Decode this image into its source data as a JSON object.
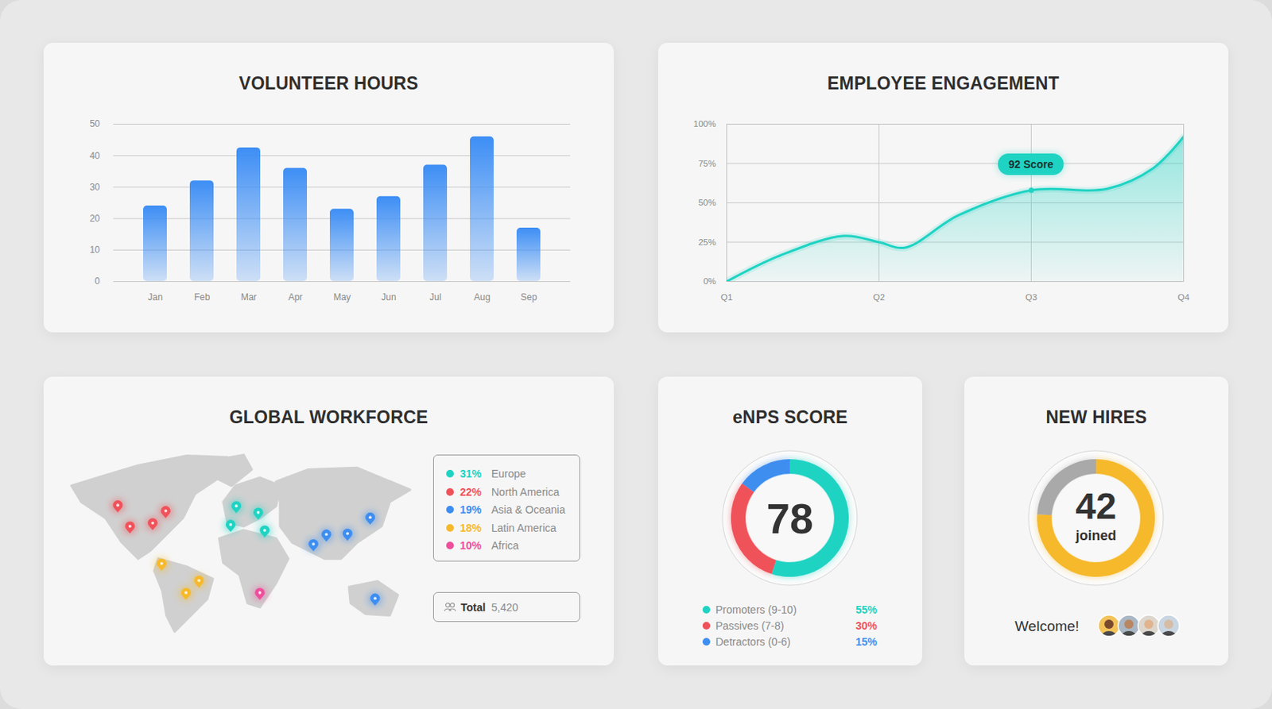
{
  "chart_data": [
    {
      "type": "bar",
      "title": "VOLUNTEER HOURS",
      "categories": [
        "Jan",
        "Feb",
        "Mar",
        "Apr",
        "May",
        "Jun",
        "Jul",
        "Aug",
        "Sep"
      ],
      "values": [
        24,
        32,
        42.5,
        36,
        23,
        27,
        37,
        46,
        17
      ],
      "color": "#3d8ef5",
      "ylim": [
        0,
        50
      ],
      "yticks": [
        0,
        10,
        20,
        30,
        40,
        50
      ],
      "grid": true
    },
    {
      "type": "line",
      "title": "EMPLOYEE ENGAGEMENT",
      "x": [
        1,
        1.35,
        1.77,
        2,
        2.17,
        2.52,
        3,
        3.5,
        3.8,
        4
      ],
      "values": [
        0,
        16.5,
        29,
        25,
        21.5,
        42,
        58,
        59,
        72,
        92
      ],
      "color": "#1fd3c3",
      "xlim": [
        1,
        4
      ],
      "xticks": [
        {
          "value": 1,
          "label": "Q1"
        },
        {
          "value": 2,
          "label": "Q2"
        },
        {
          "value": 3,
          "label": "Q3"
        },
        {
          "value": 4,
          "label": "Q4"
        }
      ],
      "ylim": [
        0,
        100
      ],
      "yticks": [
        {
          "value": 0,
          "label": "0%"
        },
        {
          "value": 25,
          "label": "25%"
        },
        {
          "value": 50,
          "label": "50%"
        },
        {
          "value": 75,
          "label": "75%"
        },
        {
          "value": 100,
          "label": "100%"
        }
      ],
      "grid": true,
      "annotations": [
        {
          "text": "92 Score",
          "x": 3,
          "y": 58
        }
      ]
    },
    {
      "type": "map",
      "title": "GLOBAL WORKFORCE",
      "categories": [
        "Europe",
        "North America",
        "Asia & Oceania",
        "Latin America",
        "Africa"
      ],
      "values": [
        31,
        22,
        19,
        18,
        10
      ],
      "value_labels": [
        "31%",
        "22%",
        "19%",
        "18%",
        "10%"
      ],
      "colors": [
        "#1fd3c3",
        "#f0525a",
        "#3e8ef0",
        "#f6b92b",
        "#ee4f9c"
      ],
      "pins": [
        4,
        4,
        5,
        3,
        1
      ],
      "total_label": "Total",
      "total": 5420
    },
    {
      "type": "donut",
      "title": "eNPS SCORE",
      "center_value": 78,
      "categories": [
        "Promoters (9-10)",
        "Passives (7-8)",
        "Detractors (0-6)"
      ],
      "values": [
        55,
        30,
        15
      ],
      "value_labels": [
        "55%",
        "30%",
        "15%"
      ],
      "colors": [
        "#1fd3c3",
        "#f0525a",
        "#3e8ef0"
      ]
    },
    {
      "type": "gauge",
      "title": "NEW HIRES",
      "center_value": 42,
      "center_label": "joined",
      "values": [
        76,
        24
      ],
      "colors": [
        "#f6b92b",
        "#a9a9a9"
      ],
      "caption": "Welcome!",
      "avatars": 4
    }
  ]
}
